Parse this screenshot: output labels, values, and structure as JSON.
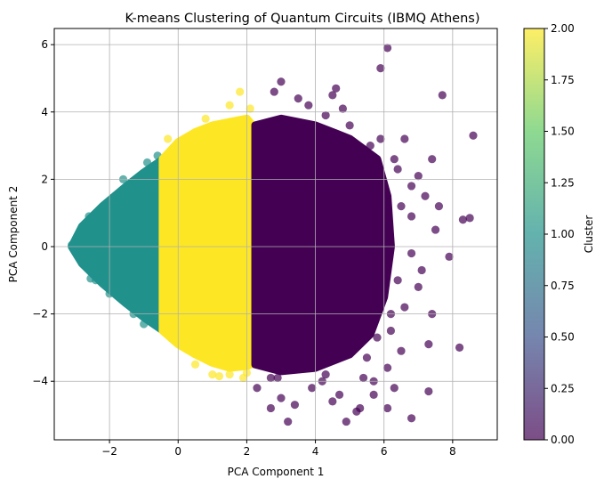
{
  "chart_data": {
    "type": "scatter",
    "title": "K-means Clustering of Quantum Circuits (IBMQ Athens)",
    "xlabel": "PCA Component 1",
    "ylabel": "PCA Component 2",
    "xlim": [
      -3.61,
      9.3
    ],
    "ylim": [
      -5.74,
      6.48
    ],
    "xticks": [
      -2,
      0,
      2,
      4,
      6,
      8
    ],
    "yticks": [
      -4,
      -2,
      0,
      2,
      4,
      6
    ],
    "grid": true,
    "point_alpha": 0.7,
    "colorbar": {
      "label": "Cluster",
      "colormap": "viridis",
      "range": [
        0,
        2
      ],
      "ticks": [
        "0.00",
        "0.25",
        "0.50",
        "0.75",
        "1.00",
        "1.25",
        "1.50",
        "1.75",
        "2.00"
      ],
      "colors": [
        "#440154",
        "#3b528b",
        "#21918c",
        "#5ec962",
        "#fde725"
      ]
    },
    "clusters": [
      {
        "cluster": 1,
        "color": "#21918c",
        "dense_region": [
          [
            -3.1,
            0
          ],
          [
            -2.8,
            0.6
          ],
          [
            -2.2,
            1.2
          ],
          [
            -1.5,
            1.8
          ],
          [
            -1.0,
            2.2
          ],
          [
            -0.5,
            2.55
          ],
          [
            -0.4,
            2.0
          ],
          [
            -0.4,
            -2.2
          ],
          [
            -0.5,
            -2.45
          ],
          [
            -1.0,
            -2.1
          ],
          [
            -1.5,
            -1.7
          ],
          [
            -2.2,
            -1.1
          ],
          [
            -2.8,
            -0.5
          ]
        ],
        "points": [
          [
            -3.1,
            0.05
          ],
          [
            -3.0,
            -0.1
          ],
          [
            -2.55,
            -0.95
          ],
          [
            -2.4,
            -1.0
          ],
          [
            -2.0,
            -1.4
          ],
          [
            -0.9,
            2.5
          ],
          [
            -1.0,
            -2.3
          ],
          [
            -0.5,
            -2.4
          ],
          [
            -2.6,
            0.9
          ],
          [
            -1.6,
            2.0
          ],
          [
            -0.6,
            2.7
          ],
          [
            -1.3,
            -2.0
          ]
        ]
      },
      {
        "cluster": 2,
        "color": "#fde725",
        "dense_region": [
          [
            -0.45,
            2.6
          ],
          [
            0,
            3.1
          ],
          [
            0.5,
            3.4
          ],
          [
            1.0,
            3.6
          ],
          [
            1.5,
            3.7
          ],
          [
            2.0,
            3.8
          ],
          [
            2.25,
            3.5
          ],
          [
            2.25,
            -3.45
          ],
          [
            2.0,
            -3.55
          ],
          [
            1.5,
            -3.6
          ],
          [
            1.0,
            -3.45
          ],
          [
            0.5,
            -3.2
          ],
          [
            0,
            -2.9
          ],
          [
            -0.45,
            -2.5
          ]
        ],
        "points": [
          [
            1.8,
            4.6
          ],
          [
            1.5,
            4.2
          ],
          [
            -0.3,
            3.2
          ],
          [
            1.0,
            -3.8
          ],
          [
            1.5,
            -3.8
          ],
          [
            2.0,
            -3.75
          ],
          [
            1.2,
            -3.85
          ],
          [
            0.5,
            -3.5
          ],
          [
            2.1,
            4.1
          ],
          [
            0.8,
            3.8
          ],
          [
            1.9,
            -3.9
          ]
        ]
      },
      {
        "cluster": 0,
        "color": "#440154",
        "dense_region": [
          [
            2.25,
            3.6
          ],
          [
            3.0,
            3.8
          ],
          [
            4.0,
            3.6
          ],
          [
            5.0,
            3.2
          ],
          [
            5.8,
            2.6
          ],
          [
            6.1,
            1.5
          ],
          [
            6.2,
            0
          ],
          [
            6.0,
            -1.5
          ],
          [
            5.6,
            -2.6
          ],
          [
            5.0,
            -3.2
          ],
          [
            4.0,
            -3.6
          ],
          [
            3.0,
            -3.7
          ],
          [
            2.25,
            -3.5
          ]
        ],
        "points": [
          [
            6.1,
            5.9
          ],
          [
            5.9,
            5.3
          ],
          [
            4.6,
            4.7
          ],
          [
            4.5,
            4.5
          ],
          [
            3.0,
            4.9
          ],
          [
            3.5,
            4.4
          ],
          [
            4.8,
            4.1
          ],
          [
            3.8,
            4.2
          ],
          [
            2.8,
            4.6
          ],
          [
            7.7,
            4.5
          ],
          [
            8.6,
            3.3
          ],
          [
            6.6,
            3.2
          ],
          [
            5.6,
            3.0
          ],
          [
            5.9,
            3.2
          ],
          [
            7.4,
            2.6
          ],
          [
            7.0,
            2.1
          ],
          [
            6.4,
            2.3
          ],
          [
            6.8,
            1.8
          ],
          [
            7.2,
            1.5
          ],
          [
            7.6,
            1.2
          ],
          [
            8.3,
            0.8
          ],
          [
            8.5,
            0.85
          ],
          [
            6.8,
            0.9
          ],
          [
            7.5,
            0.5
          ],
          [
            7.9,
            -0.3
          ],
          [
            7.1,
            -0.7
          ],
          [
            7.0,
            -1.2
          ],
          [
            6.6,
            -1.8
          ],
          [
            6.8,
            -0.2
          ],
          [
            7.4,
            -2.0
          ],
          [
            8.2,
            -3.0
          ],
          [
            7.3,
            -2.9
          ],
          [
            6.5,
            -3.1
          ],
          [
            6.2,
            -2.0
          ],
          [
            5.8,
            -2.7
          ],
          [
            5.5,
            -3.3
          ],
          [
            6.1,
            -3.6
          ],
          [
            5.7,
            -4.0
          ],
          [
            5.7,
            -4.4
          ],
          [
            6.3,
            -4.2
          ],
          [
            7.3,
            -4.3
          ],
          [
            6.8,
            -5.1
          ],
          [
            6.1,
            -4.8
          ],
          [
            5.2,
            -4.9
          ],
          [
            4.9,
            -5.2
          ],
          [
            4.7,
            -4.4
          ],
          [
            4.5,
            -4.6
          ],
          [
            3.9,
            -4.2
          ],
          [
            3.2,
            -5.2
          ],
          [
            3.0,
            -4.5
          ],
          [
            2.7,
            -4.8
          ],
          [
            2.7,
            -3.9
          ],
          [
            2.3,
            -4.2
          ],
          [
            2.9,
            -3.9
          ],
          [
            3.4,
            -4.7
          ],
          [
            4.2,
            -4.0
          ],
          [
            5.4,
            -3.9
          ],
          [
            5.3,
            -4.8
          ],
          [
            4.3,
            -3.8
          ],
          [
            3.7,
            -3.6
          ],
          [
            6.3,
            2.6
          ],
          [
            6.5,
            1.2
          ],
          [
            6.4,
            -1.0
          ],
          [
            6.2,
            -2.5
          ],
          [
            5.0,
            3.6
          ],
          [
            4.3,
            3.9
          ]
        ]
      }
    ]
  }
}
